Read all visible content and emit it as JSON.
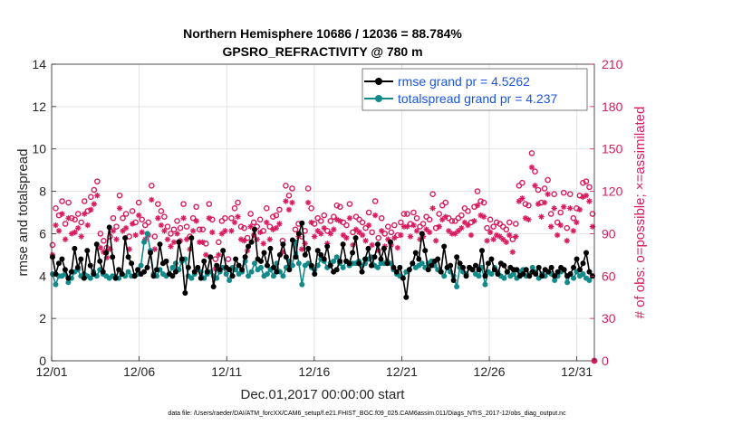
{
  "chart_data": {
    "type": "line",
    "title": "Northern Hemisphere 10686 / 12036 = 88.784%",
    "subtitle": "GPSRO_REFRACTIVITY @ 780 m",
    "xlabel": "Dec.01,2017 00:00:00 start",
    "ylabel_left": "rmse and totalspread",
    "ylabel_right": "# of obs: o=possible; ×=assimilated",
    "xlim": [
      1,
      32
    ],
    "ylim_left": [
      0,
      14
    ],
    "ylim_right": [
      0,
      210
    ],
    "x_ticks": [
      1,
      6,
      11,
      16,
      21,
      26,
      31
    ],
    "x_tick_labels": [
      "12/01",
      "12/06",
      "12/11",
      "12/16",
      "12/21",
      "12/26",
      "12/31"
    ],
    "y_ticks_left": [
      0,
      2,
      4,
      6,
      8,
      10,
      12,
      14
    ],
    "y_ticks_right": [
      0,
      30,
      60,
      90,
      120,
      150,
      180,
      210
    ],
    "grid": true,
    "legend_position": "top-right",
    "footer": "data file: /Users/raeder/DAI/ATM_forcXX/CAM6_setup/f.e21.FHIST_BGC.f09_025.CAM6assim.011/Diags_NTrS_2017-12/obs_diag_output.nc",
    "colors": {
      "rmse": "#000000",
      "spread": "#138a8a",
      "counts": "#d81b60",
      "legend_text": "#1a55e0"
    },
    "series": [
      {
        "name": "rmse grand pr = 4.5262",
        "axis": "left",
        "values": [
          4.9,
          4.1,
          4.6,
          4.8,
          4.3,
          3.9,
          4.2,
          5.3,
          4.4,
          4.8,
          3.9,
          5.2,
          4.5,
          4.1,
          5.5,
          4.7,
          4.2,
          5.1,
          6.3,
          4.9,
          3.9,
          4.3,
          4.1,
          5.8,
          4.9,
          4.6,
          4.0,
          4.3,
          4.1,
          4.2,
          4.4,
          5.1,
          4.0,
          4.3,
          5.5,
          4.6,
          4.7,
          4.1,
          4.0,
          4.2,
          5.6,
          4.8,
          3.2,
          4.4,
          5.8,
          4.2,
          4.4,
          3.9,
          4.7,
          4.2,
          4.9,
          3.5,
          4.5,
          4.3,
          5.2,
          4.4,
          4.3,
          4.0,
          4.8,
          4.5,
          4.3,
          4.9,
          5.4,
          5.6,
          6.2,
          4.8,
          4.7,
          5.1,
          4.5,
          5.3,
          4.4,
          4.2,
          5.0,
          5.5,
          4.9,
          4.3,
          5.7,
          4.9,
          6.0,
          6.5,
          5.0,
          5.3,
          4.5,
          4.1,
          5.2,
          5.0,
          4.8,
          5.4,
          4.5,
          4.2,
          4.3,
          4.7,
          5.5,
          4.7,
          4.6,
          5.1,
          5.8,
          4.6,
          4.2,
          4.8,
          5.3,
          4.5,
          4.9,
          5.5,
          4.8,
          5.3,
          4.6,
          5.6,
          4.4,
          4.2,
          4.4,
          3.9,
          3.0,
          4.3,
          4.6,
          5.1,
          4.8,
          6.0,
          5.2,
          4.3,
          4.5,
          4.7,
          4.8,
          4.2,
          5.4,
          4.4,
          4.5,
          3.8,
          4.9,
          4.6,
          4.4,
          4.0,
          4.4,
          4.3,
          4.5,
          4.3,
          5.2,
          4.0,
          4.6,
          4.8,
          4.3,
          4.1,
          4.6,
          4.5,
          4.2,
          4.4,
          4.3,
          4.3,
          4.0,
          4.1,
          4.3,
          4.0,
          4.2,
          4.1,
          4.4,
          4.0,
          4.3,
          4.2,
          4.4,
          4.0,
          4.2,
          4.4,
          4.3,
          4.0,
          4.1,
          4.4,
          4.8,
          4.3,
          4.6,
          5.1,
          4.2,
          4.0
        ]
      },
      {
        "name": "totalspread grand pr = 4.237",
        "axis": "left",
        "values": [
          4.1,
          3.6,
          4.0,
          4.0,
          4.1,
          3.7,
          3.9,
          4.2,
          4.3,
          4.0,
          4.1,
          4.0,
          3.9,
          4.2,
          4.0,
          4.3,
          4.1,
          4.0,
          3.9,
          4.0,
          3.9,
          3.9,
          4.1,
          4.0,
          4.2,
          4.0,
          4.0,
          4.1,
          4.5,
          5.6,
          6.0,
          5.2,
          4.1,
          4.0,
          4.3,
          4.1,
          4.0,
          4.1,
          4.4,
          4.6,
          4.3,
          4.7,
          4.8,
          4.0,
          3.9,
          4.1,
          4.3,
          4.2,
          3.9,
          4.1,
          4.2,
          4.0,
          3.9,
          4.2,
          4.4,
          4.1,
          3.8,
          4.4,
          4.3,
          4.1,
          4.2,
          4.7,
          4.0,
          4.2,
          4.6,
          4.3,
          4.4,
          4.0,
          4.1,
          4.3,
          4.0,
          4.6,
          4.2,
          4.0,
          4.4,
          4.7,
          4.5,
          5.6,
          4.6,
          3.6,
          4.5,
          4.6,
          4.4,
          4.3,
          4.5,
          4.8,
          4.7,
          4.4,
          4.6,
          4.7,
          4.9,
          4.6,
          4.4,
          4.7,
          4.5,
          4.6,
          4.6,
          4.7,
          4.5,
          4.6,
          4.8,
          4.9,
          4.5,
          4.4,
          4.6,
          4.6,
          4.7,
          4.6,
          4.3,
          4.1,
          4.0,
          3.9,
          4.2,
          4.3,
          4.6,
          4.4,
          4.5,
          4.6,
          4.4,
          4.6,
          4.7,
          4.5,
          4.3,
          4.2,
          4.0,
          4.4,
          4.2,
          4.0,
          3.5,
          4.4,
          4.2,
          4.1,
          4.4,
          4.3,
          4.1,
          4.0,
          4.4,
          3.6,
          4.2,
          4.1,
          4.4,
          4.2,
          4.0,
          3.9,
          4.2,
          4.0,
          4.1,
          3.9,
          4.2,
          4.3,
          4.0,
          4.1,
          4.4,
          4.2,
          3.9,
          4.1,
          4.0,
          4.2,
          4.1,
          3.8,
          4.0,
          4.2,
          4.3,
          3.7,
          4.1,
          3.9,
          4.2,
          4.0,
          4.1,
          3.9,
          3.8,
          4.0
        ]
      },
      {
        "name": "possible",
        "axis": "right",
        "marker": "o",
        "values": [
          82,
          108,
          103,
          113,
          97,
          112,
          101,
          100,
          104,
          98,
          113,
          106,
          116,
          121,
          127,
          90,
          85,
          80,
          88,
          101,
          95,
          117,
          101,
          104,
          88,
          106,
          98,
          112,
          100,
          96,
          98,
          124,
          88,
          111,
          106,
          102,
          95,
          90,
          93,
          99,
          94,
          111,
          95,
          88,
          101,
          109,
          93,
          93,
          83,
          111,
          100,
          72,
          84,
          99,
          101,
          72,
          101,
          108,
          112,
          95,
          94,
          87,
          104,
          98,
          95,
          100,
          92,
          108,
          95,
          102,
          103,
          107,
          85,
          124,
          117,
          122,
          93,
          97,
          88,
          92,
          122,
          108,
          97,
          101,
          99,
          103,
          92,
          99,
          102,
          110,
          109,
          98,
          96,
          111,
          91,
          102,
          100,
          98,
          94,
          105,
          91,
          113,
          87,
          101,
          90,
          95,
          91,
          96,
          89,
          98,
          104,
          104,
          97,
          105,
          101,
          95,
          97,
          102,
          100,
          118,
          94,
          104,
          110,
          112,
          101,
          99,
          99,
          101,
          103,
          108,
          106,
          98,
          109,
          120,
          113,
          112,
          94,
          100,
          95,
          98,
          97,
          95,
          93,
          98,
          86,
          97,
          124,
          126,
          111,
          110,
          147,
          134,
          121,
          112,
          122,
          128,
          104,
          118,
          98,
          105,
          119,
          94,
          118,
          101,
          108,
          117,
          126,
          127,
          123,
          104
        ]
      },
      {
        "name": "assimilated",
        "axis": "right",
        "marker": "*",
        "values": [
          75,
          96,
          92,
          104,
          86,
          101,
          90,
          91,
          94,
          88,
          104,
          96,
          107,
          111,
          117,
          80,
          77,
          73,
          79,
          92,
          86,
          108,
          92,
          94,
          79,
          97,
          89,
          103,
          91,
          86,
          89,
          114,
          79,
          101,
          96,
          92,
          86,
          81,
          84,
          90,
          85,
          101,
          86,
          79,
          92,
          99,
          84,
          84,
          75,
          101,
          91,
          65,
          75,
          90,
          92,
          65,
          92,
          98,
          102,
          86,
          85,
          78,
          95,
          89,
          86,
          91,
          83,
          98,
          86,
          93,
          94,
          97,
          77,
          113,
          107,
          112,
          84,
          88,
          79,
          83,
          112,
          98,
          88,
          92,
          90,
          94,
          83,
          90,
          93,
          100,
          99,
          89,
          87,
          101,
          82,
          93,
          91,
          89,
          85,
          96,
          82,
          103,
          78,
          92,
          81,
          86,
          82,
          87,
          80,
          89,
          95,
          95,
          88,
          96,
          92,
          86,
          88,
          93,
          91,
          108,
          85,
          95,
          100,
          102,
          92,
          90,
          90,
          92,
          94,
          98,
          96,
          89,
          99,
          110,
          103,
          102,
          85,
          91,
          86,
          89,
          88,
          86,
          84,
          89,
          77,
          88,
          113,
          115,
          101,
          100,
          137,
          124,
          111,
          102,
          112,
          118,
          95,
          108,
          89,
          96,
          109,
          85,
          108,
          92,
          98,
          107,
          116,
          117,
          113,
          95
        ]
      }
    ]
  }
}
